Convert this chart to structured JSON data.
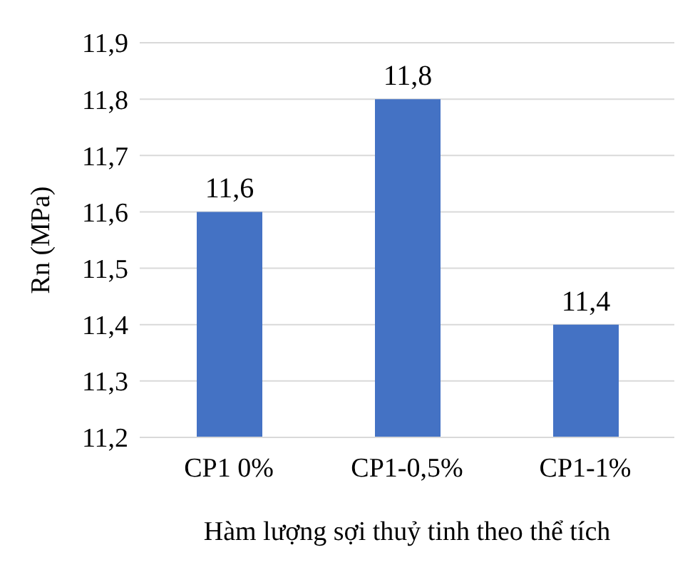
{
  "chart_data": {
    "type": "bar",
    "ylabel": "Rn (MPa)",
    "xlabel": "Hàm lượng sợi thuỷ tinh theo thể tích",
    "categories": [
      "CP1 0%",
      "CP1-0,5%",
      "CP1-1%"
    ],
    "values": [
      11.6,
      11.8,
      11.4
    ],
    "color": "#4472c4",
    "value_labels": [
      "11,6",
      "11,8",
      "11,4"
    ],
    "ylim": [
      11.2,
      11.9
    ],
    "yticks": [
      {
        "value": 11.2,
        "label": "11,2"
      },
      {
        "value": 11.3,
        "label": "11,3"
      },
      {
        "value": 11.4,
        "label": "11,4"
      },
      {
        "value": 11.5,
        "label": "11,5"
      },
      {
        "value": 11.6,
        "label": "11,6"
      },
      {
        "value": 11.7,
        "label": "11,7"
      },
      {
        "value": 11.8,
        "label": "11,8"
      },
      {
        "value": 11.9,
        "label": "11,9"
      }
    ],
    "grid": "y",
    "legend": false
  }
}
